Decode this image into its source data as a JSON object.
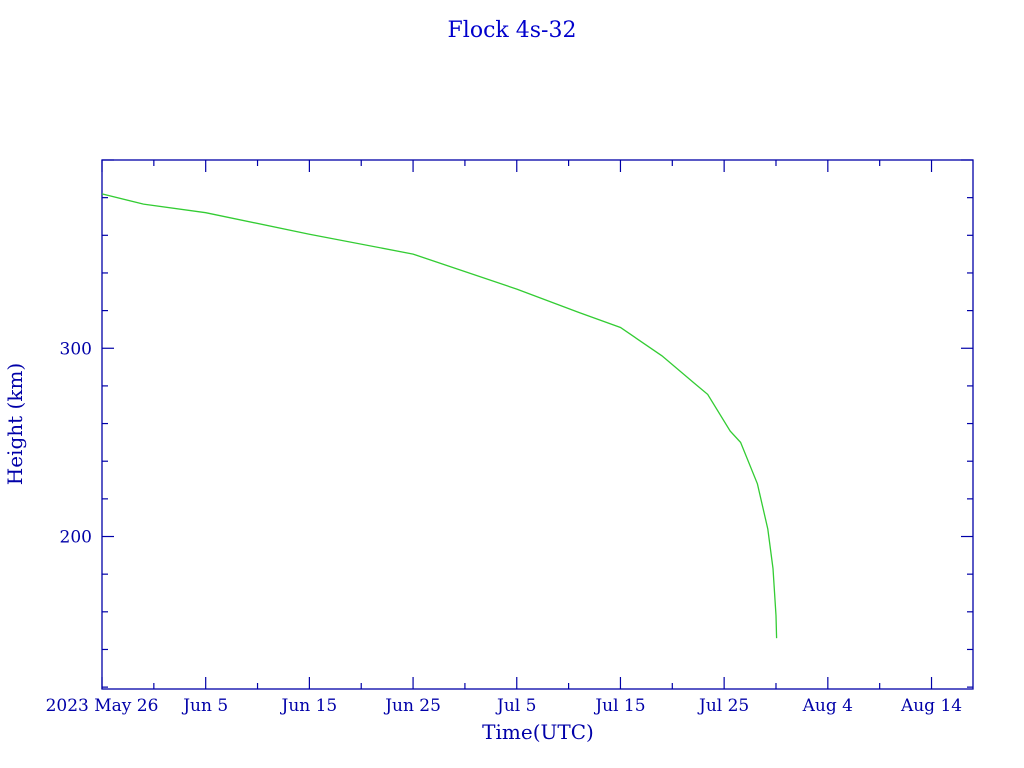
{
  "chart_data": {
    "type": "line",
    "title": "Flock 4s-32",
    "xlabel": "Time(UTC)",
    "ylabel": "Height (km)",
    "xlim": [
      "2023-05-26T00:00",
      "2023-08-18T00:00"
    ],
    "ylim": [
      119,
      400
    ],
    "x_tick_labels": [
      {
        "date": "2023-05-26",
        "label": "2023 May 26"
      },
      {
        "date": "2023-06-05",
        "label": "Jun  5"
      },
      {
        "date": "2023-06-15",
        "label": "Jun 15"
      },
      {
        "date": "2023-06-25",
        "label": "Jun 25"
      },
      {
        "date": "2023-07-05",
        "label": "Jul  5"
      },
      {
        "date": "2023-07-15",
        "label": "Jul 15"
      },
      {
        "date": "2023-07-25",
        "label": "Jul 25"
      },
      {
        "date": "2023-08-04",
        "label": "Aug  4"
      },
      {
        "date": "2023-08-14",
        "label": "Aug 14"
      }
    ],
    "y_tick_labels": [
      {
        "value": 200,
        "label": "200"
      },
      {
        "value": 300,
        "label": "300"
      }
    ],
    "grid": false,
    "colors": {
      "axis": "#0000a8",
      "title": "#0000cc",
      "series": "#33cc33"
    },
    "series": [
      {
        "x": [
          "2023-05-26T00:00",
          "2023-05-30T00:00",
          "2023-06-05T00:00",
          "2023-06-15T00:00",
          "2023-06-25T00:00",
          "2023-07-05T00:00",
          "2023-07-11T00:00",
          "2023-07-15T00:00",
          "2023-07-19T00:00",
          "2023-07-22T00:00",
          "2023-07-23T10:00",
          "2023-07-25T14:00",
          "2023-07-26T14:00",
          "2023-07-28T05:00",
          "2023-07-29T05:00",
          "2023-07-29T17:00",
          "2023-07-30T00:00",
          "2023-07-30T01:30"
        ],
        "y": [
          382,
          376.6,
          372,
          360.6,
          350,
          331.4,
          319,
          311,
          296,
          282,
          275.5,
          256,
          250,
          228,
          204,
          183,
          158,
          146
        ]
      }
    ]
  }
}
